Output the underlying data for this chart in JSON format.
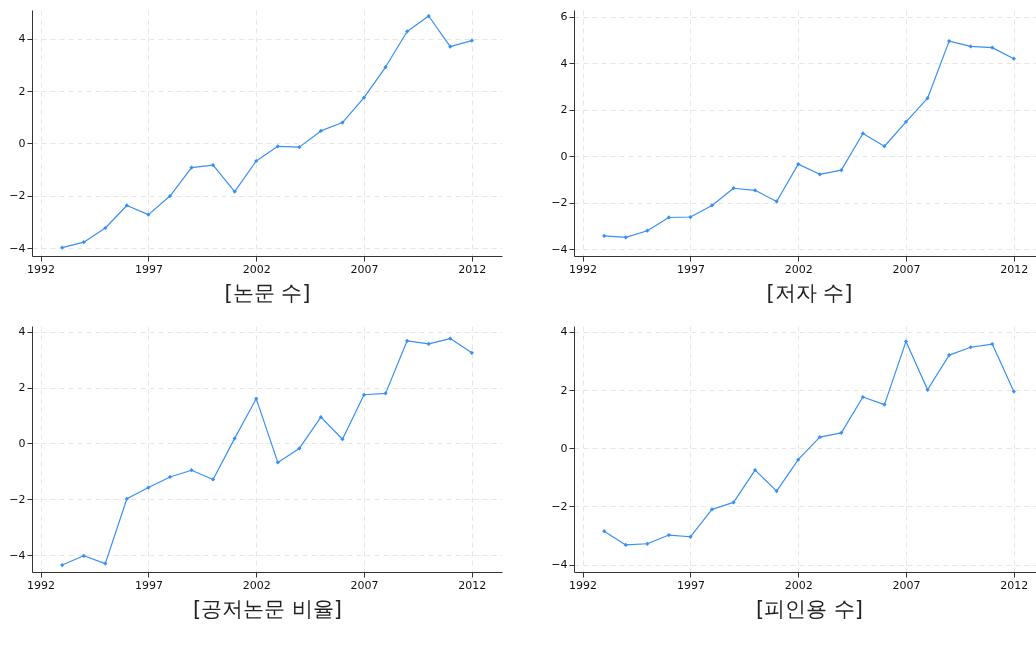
{
  "chart_data": [
    {
      "type": "line",
      "xlabel": "[논문 수]",
      "x": [
        1993,
        1994,
        1995,
        1996,
        1997,
        1998,
        1999,
        2000,
        2001,
        2002,
        2003,
        2004,
        2005,
        2006,
        2007,
        2008,
        2009,
        2010,
        2011,
        2012
      ],
      "series": [
        {
          "color": "#3a8ff2",
          "values": [
            -3.98,
            -3.77,
            -3.23,
            -2.37,
            -2.72,
            -2.01,
            -0.92,
            -0.83,
            -1.84,
            -0.67,
            -0.11,
            -0.14,
            0.48,
            0.8,
            1.75,
            2.92,
            4.28,
            4.87,
            3.7,
            3.93
          ]
        }
      ],
      "xlim": [
        1991.6,
        2013.4
      ],
      "xticks": [
        1992,
        1997,
        2002,
        2007,
        2012
      ],
      "ylim": [
        -4.3,
        5.1
      ],
      "yticks": [
        -4,
        -2,
        0,
        2,
        4
      ],
      "grid": true,
      "marker": "diamond",
      "line_style": "solid"
    },
    {
      "type": "line",
      "xlabel": "[저자 수]",
      "x": [
        1993,
        1994,
        1995,
        1996,
        1997,
        1998,
        1999,
        2000,
        2001,
        2002,
        2003,
        2004,
        2005,
        2006,
        2007,
        2008,
        2009,
        2010,
        2011,
        2012
      ],
      "series": [
        {
          "color": "#3a8ff2",
          "values": [
            -3.43,
            -3.5,
            -3.21,
            -2.64,
            -2.62,
            -2.12,
            -1.38,
            -1.47,
            -1.95,
            -0.34,
            -0.78,
            -0.6,
            0.98,
            0.43,
            1.48,
            2.5,
            4.96,
            4.73,
            4.68,
            4.2
          ]
        }
      ],
      "xlim": [
        1991.6,
        2013.4
      ],
      "xticks": [
        1992,
        1997,
        2002,
        2007,
        2012
      ],
      "ylim": [
        -4.3,
        6.3
      ],
      "yticks": [
        -4,
        -2,
        0,
        2,
        4,
        6
      ],
      "grid": true,
      "marker": "diamond",
      "line_style": "solid"
    },
    {
      "type": "line",
      "xlabel": "[공저논문 비율]",
      "x": [
        1993,
        1994,
        1995,
        1996,
        1997,
        1998,
        1999,
        2000,
        2001,
        2002,
        2003,
        2004,
        2005,
        2006,
        2007,
        2008,
        2009,
        2010,
        2011,
        2012
      ],
      "series": [
        {
          "color": "#3a8ff2",
          "values": [
            -4.35,
            -4.02,
            -4.3,
            -1.98,
            -1.58,
            -1.2,
            -0.96,
            -1.29,
            0.18,
            1.6,
            -0.68,
            -0.18,
            0.94,
            0.15,
            1.74,
            1.79,
            3.67,
            3.56,
            3.75,
            3.24
          ]
        }
      ],
      "xlim": [
        1991.6,
        2013.4
      ],
      "xticks": [
        1992,
        1997,
        2002,
        2007,
        2012
      ],
      "ylim": [
        -4.6,
        4.2
      ],
      "yticks": [
        -4,
        -2,
        0,
        2,
        4
      ],
      "grid": true,
      "marker": "diamond",
      "line_style": "solid"
    },
    {
      "type": "line",
      "xlabel": "[피인용 수]",
      "x": [
        1993,
        1994,
        1995,
        1996,
        1997,
        1998,
        1999,
        2000,
        2001,
        2002,
        2003,
        2004,
        2005,
        2006,
        2007,
        2008,
        2009,
        2010,
        2011,
        2012
      ],
      "series": [
        {
          "color": "#3a8ff2",
          "values": [
            -2.85,
            -3.32,
            -3.28,
            -2.98,
            -3.04,
            -2.1,
            -1.86,
            -0.75,
            -1.47,
            -0.39,
            0.38,
            0.53,
            1.76,
            1.5,
            3.67,
            2.01,
            3.2,
            3.47,
            3.58,
            1.95
          ]
        }
      ],
      "xlim": [
        1991.6,
        2013.4
      ],
      "xticks": [
        1992,
        1997,
        2002,
        2007,
        2012
      ],
      "ylim": [
        -4.25,
        4.2
      ],
      "yticks": [
        -4,
        -2,
        0,
        2,
        4
      ],
      "grid": true,
      "marker": "diamond",
      "line_style": "solid"
    }
  ]
}
